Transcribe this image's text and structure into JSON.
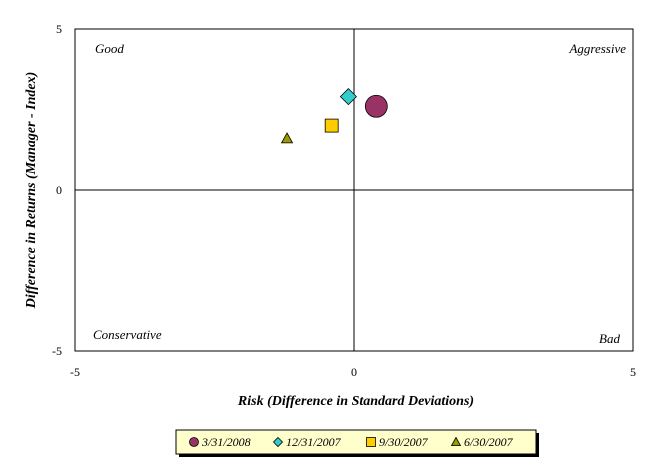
{
  "chart_data": {
    "type": "scatter",
    "xlabel": "Risk (Difference in Standard Deviations)",
    "ylabel": "Difference in Returns (Manager - Index)",
    "xlim": [
      -5,
      5
    ],
    "ylim": [
      -5,
      5
    ],
    "x_ticks": [
      "-5",
      "0",
      "5"
    ],
    "y_ticks": [
      "5",
      "0",
      "-5"
    ],
    "grid": false,
    "quadrant_labels": {
      "top_left": "Good",
      "top_right": "Aggressive",
      "bottom_left": "Conservative",
      "bottom_right": "Bad"
    },
    "legend_position": "bottom",
    "series": [
      {
        "name": "3/31/2008",
        "marker": "circle",
        "color": "#993366",
        "x": 0.4,
        "y": 2.6
      },
      {
        "name": "12/31/2007",
        "marker": "diamond",
        "color": "#33CCCC",
        "x": -0.1,
        "y": 2.9
      },
      {
        "name": "9/30/2007",
        "marker": "square",
        "color": "#FFCC00",
        "x": -0.4,
        "y": 2.0
      },
      {
        "name": "6/30/2007",
        "marker": "triangle",
        "color": "#999900",
        "x": -1.2,
        "y": 1.6
      }
    ]
  }
}
